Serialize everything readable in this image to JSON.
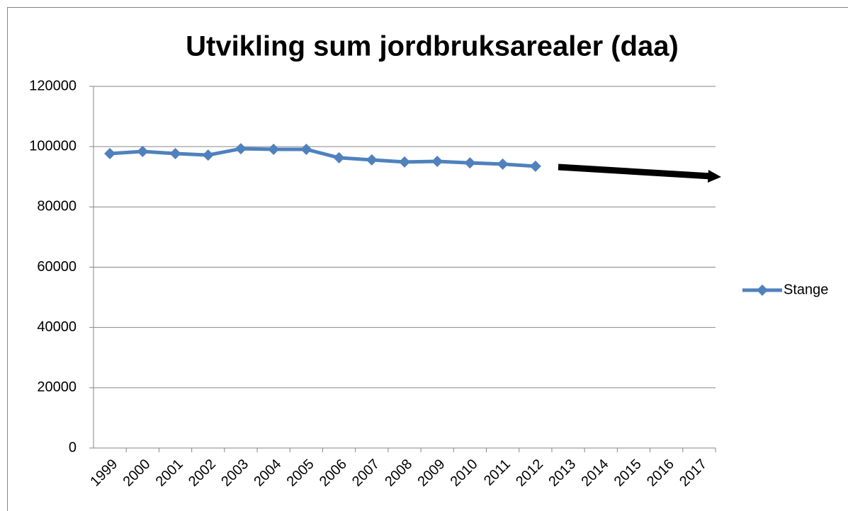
{
  "chart_data": {
    "type": "line",
    "title": "Utvikling sum jordbruksarealer (daa)",
    "categories": [
      "1999",
      "2000",
      "2001",
      "2002",
      "2003",
      "2004",
      "2005",
      "2006",
      "2007",
      "2008",
      "2009",
      "2010",
      "2011",
      "2012",
      "2013",
      "2014",
      "2015",
      "2016",
      "2017"
    ],
    "series": [
      {
        "name": "Stange",
        "color": "#4f81bd",
        "values": [
          97700,
          98400,
          97700,
          97200,
          99300,
          99100,
          99100,
          96300,
          95600,
          94900,
          95100,
          94600,
          94200,
          93500,
          null,
          null,
          null,
          null,
          null
        ]
      }
    ],
    "ylim": [
      0,
      120000
    ],
    "yticks": [
      0,
      20000,
      40000,
      60000,
      80000,
      100000,
      120000
    ],
    "grid": true,
    "legend": "right"
  }
}
